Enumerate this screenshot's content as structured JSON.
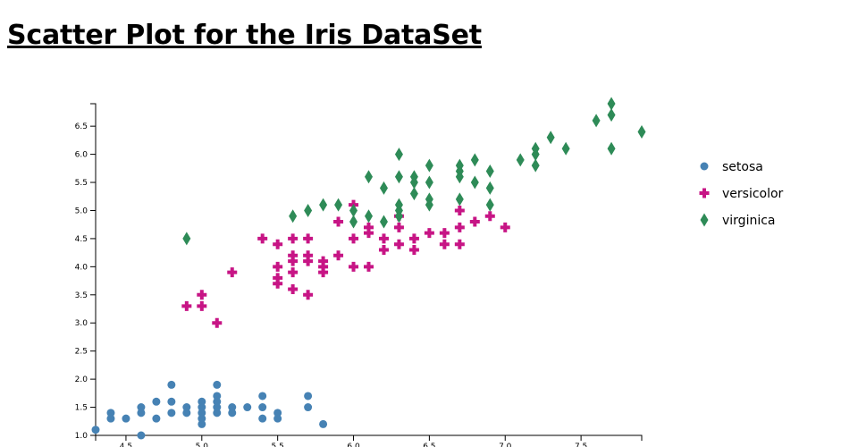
{
  "page": {
    "title": "Scatter Plot for the Iris DataSet"
  },
  "chart_data": {
    "type": "scatter",
    "title": "Scatter Plot for the Iris DataSet",
    "xlabel": "",
    "ylabel": "",
    "xlim": [
      4.3,
      7.9
    ],
    "ylim": [
      1.0,
      6.9
    ],
    "x_ticks": [
      "4.5",
      "5.0",
      "5.5",
      "6.0",
      "6.5",
      "7.0",
      "7.5"
    ],
    "y_ticks": [
      "1.0",
      "1.5",
      "2.0",
      "2.5",
      "3.0",
      "3.5",
      "4.0",
      "4.5",
      "5.0",
      "5.5",
      "6.0",
      "6.5"
    ],
    "grid": false,
    "legend_position": "right",
    "series": [
      {
        "name": "setosa",
        "color": "#4682b4",
        "marker": "circle",
        "points": [
          [
            4.3,
            1.1
          ],
          [
            4.4,
            1.3
          ],
          [
            4.4,
            1.4
          ],
          [
            4.5,
            1.3
          ],
          [
            4.6,
            1.0
          ],
          [
            4.6,
            1.4
          ],
          [
            4.6,
            1.5
          ],
          [
            4.7,
            1.3
          ],
          [
            4.7,
            1.6
          ],
          [
            4.8,
            1.4
          ],
          [
            4.8,
            1.6
          ],
          [
            4.8,
            1.9
          ],
          [
            4.9,
            1.4
          ],
          [
            4.9,
            1.5
          ],
          [
            5.0,
            1.2
          ],
          [
            5.0,
            1.3
          ],
          [
            5.0,
            1.4
          ],
          [
            5.0,
            1.5
          ],
          [
            5.0,
            1.6
          ],
          [
            5.1,
            1.4
          ],
          [
            5.1,
            1.5
          ],
          [
            5.1,
            1.6
          ],
          [
            5.1,
            1.7
          ],
          [
            5.1,
            1.9
          ],
          [
            5.2,
            1.4
          ],
          [
            5.2,
            1.5
          ],
          [
            5.3,
            1.5
          ],
          [
            5.4,
            1.3
          ],
          [
            5.4,
            1.5
          ],
          [
            5.4,
            1.7
          ],
          [
            5.5,
            1.3
          ],
          [
            5.5,
            1.4
          ],
          [
            5.7,
            1.5
          ],
          [
            5.7,
            1.7
          ],
          [
            5.8,
            1.2
          ]
        ]
      },
      {
        "name": "versicolor",
        "color": "#c71585",
        "marker": "cross",
        "points": [
          [
            4.9,
            3.3
          ],
          [
            5.0,
            3.3
          ],
          [
            5.0,
            3.5
          ],
          [
            5.1,
            3.0
          ],
          [
            5.2,
            3.9
          ],
          [
            5.4,
            4.5
          ],
          [
            5.5,
            3.7
          ],
          [
            5.5,
            3.8
          ],
          [
            5.5,
            4.0
          ],
          [
            5.5,
            4.4
          ],
          [
            5.6,
            3.6
          ],
          [
            5.6,
            3.9
          ],
          [
            5.6,
            4.1
          ],
          [
            5.6,
            4.2
          ],
          [
            5.6,
            4.5
          ],
          [
            5.7,
            3.5
          ],
          [
            5.7,
            4.1
          ],
          [
            5.7,
            4.2
          ],
          [
            5.7,
            4.5
          ],
          [
            5.8,
            3.9
          ],
          [
            5.8,
            4.0
          ],
          [
            5.8,
            4.1
          ],
          [
            5.9,
            4.2
          ],
          [
            5.9,
            4.8
          ],
          [
            6.0,
            4.0
          ],
          [
            6.0,
            4.5
          ],
          [
            6.0,
            5.1
          ],
          [
            6.1,
            4.0
          ],
          [
            6.1,
            4.6
          ],
          [
            6.1,
            4.7
          ],
          [
            6.2,
            4.3
          ],
          [
            6.2,
            4.5
          ],
          [
            6.3,
            4.4
          ],
          [
            6.3,
            4.7
          ],
          [
            6.3,
            4.9
          ],
          [
            6.4,
            4.3
          ],
          [
            6.4,
            4.5
          ],
          [
            6.5,
            4.6
          ],
          [
            6.6,
            4.4
          ],
          [
            6.6,
            4.6
          ],
          [
            6.7,
            4.4
          ],
          [
            6.7,
            4.7
          ],
          [
            6.7,
            5.0
          ],
          [
            6.8,
            4.8
          ],
          [
            6.9,
            4.9
          ],
          [
            7.0,
            4.7
          ]
        ]
      },
      {
        "name": "virginica",
        "color": "#2e8b57",
        "marker": "diamond",
        "points": [
          [
            4.9,
            4.5
          ],
          [
            5.6,
            4.9
          ],
          [
            5.7,
            5.0
          ],
          [
            5.8,
            5.1
          ],
          [
            5.9,
            5.1
          ],
          [
            6.0,
            4.8
          ],
          [
            6.0,
            5.0
          ],
          [
            6.1,
            4.9
          ],
          [
            6.1,
            5.6
          ],
          [
            6.2,
            4.8
          ],
          [
            6.2,
            5.4
          ],
          [
            6.3,
            4.9
          ],
          [
            6.3,
            5.0
          ],
          [
            6.3,
            5.1
          ],
          [
            6.3,
            5.6
          ],
          [
            6.3,
            6.0
          ],
          [
            6.4,
            5.3
          ],
          [
            6.4,
            5.5
          ],
          [
            6.4,
            5.6
          ],
          [
            6.5,
            5.1
          ],
          [
            6.5,
            5.2
          ],
          [
            6.5,
            5.5
          ],
          [
            6.5,
            5.8
          ],
          [
            6.7,
            5.2
          ],
          [
            6.7,
            5.6
          ],
          [
            6.7,
            5.7
          ],
          [
            6.7,
            5.8
          ],
          [
            6.8,
            5.5
          ],
          [
            6.8,
            5.9
          ],
          [
            6.9,
            5.1
          ],
          [
            6.9,
            5.4
          ],
          [
            6.9,
            5.7
          ],
          [
            7.1,
            5.9
          ],
          [
            7.2,
            5.8
          ],
          [
            7.2,
            6.0
          ],
          [
            7.2,
            6.1
          ],
          [
            7.3,
            6.3
          ],
          [
            7.4,
            6.1
          ],
          [
            7.6,
            6.6
          ],
          [
            7.7,
            6.1
          ],
          [
            7.7,
            6.7
          ],
          [
            7.7,
            6.9
          ],
          [
            7.9,
            6.4
          ]
        ]
      }
    ]
  }
}
